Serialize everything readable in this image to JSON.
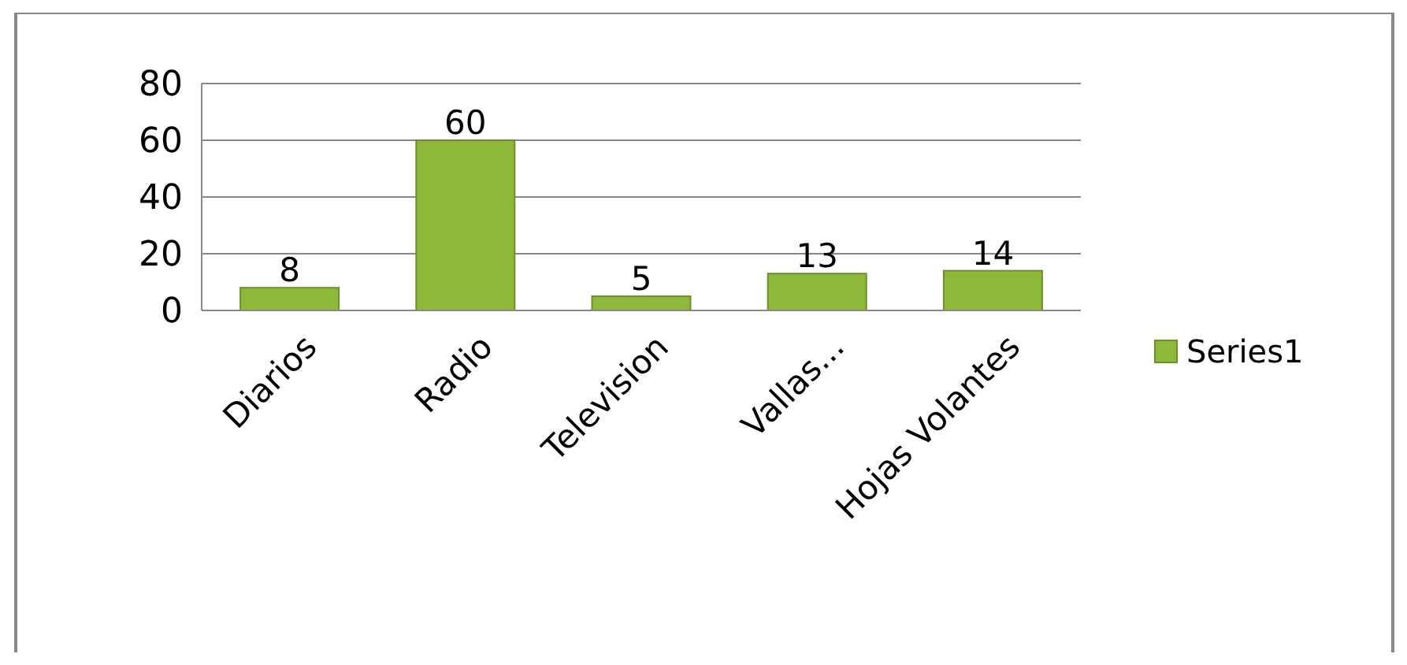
{
  "chart_data": {
    "type": "bar",
    "categories": [
      "Diarios",
      "Radio",
      "Television",
      "Vallas...",
      "Hojas Volantes"
    ],
    "series": [
      {
        "name": "Series1",
        "color": "#8db83a",
        "values": [
          8,
          60,
          5,
          13,
          14
        ]
      }
    ],
    "ylim": [
      0,
      80
    ],
    "yticks": [
      0,
      20,
      40,
      60,
      80
    ],
    "grid": "y",
    "legend": "right",
    "data_labels": true
  }
}
